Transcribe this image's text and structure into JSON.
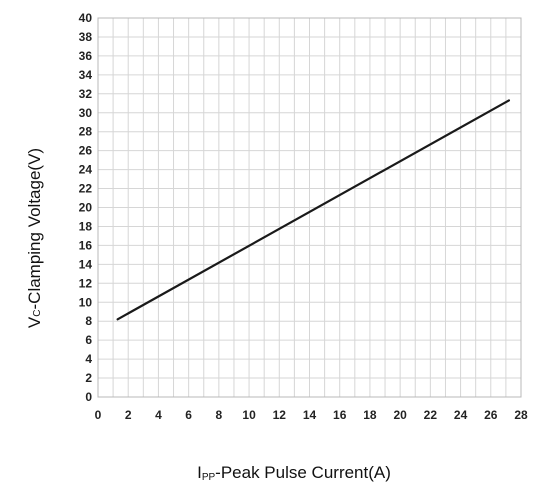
{
  "chart_data": {
    "type": "line",
    "title": "",
    "xlabel": {
      "main": "I",
      "subscript": "PP",
      "rest": "-Peak Pulse Current(A)"
    },
    "ylabel": {
      "main": "V",
      "subscript": "C",
      "rest": "-Clamping Voltage(V)"
    },
    "xlim": [
      0,
      28
    ],
    "ylim": [
      0,
      40
    ],
    "x_ticks": [
      "0",
      "2",
      "4",
      "6",
      "8",
      "10",
      "12",
      "14",
      "16",
      "18",
      "20",
      "22",
      "24",
      "26",
      "28"
    ],
    "y_ticks": [
      "0",
      "2",
      "4",
      "6",
      "8",
      "10",
      "12",
      "14",
      "16",
      "18",
      "20",
      "22",
      "24",
      "26",
      "28",
      "30",
      "32",
      "34",
      "36",
      "38",
      "40"
    ],
    "x_minor_step": 1,
    "grid": true,
    "series": [
      {
        "x": [
          1.3,
          27.2
        ],
        "y": [
          8.2,
          31.3
        ],
        "color": "#1a1a1a"
      }
    ]
  }
}
